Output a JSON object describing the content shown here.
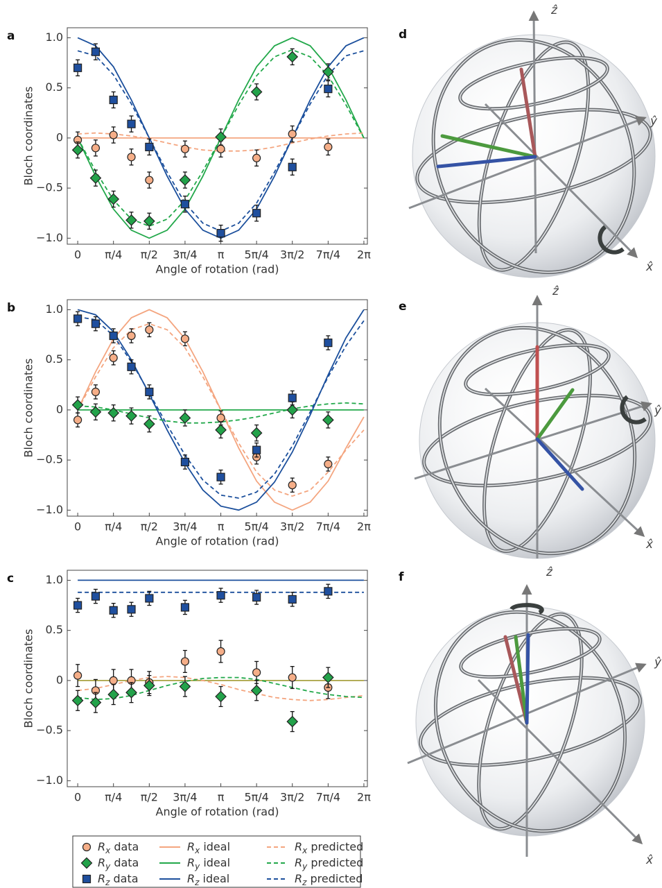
{
  "chart_data": [
    {
      "type": "scatter",
      "panel_label": "a",
      "y_label": "Bloch coordinates",
      "x_label": "Angle of rotation (rad)",
      "xlim": [
        -0.23,
        6.36
      ],
      "ylim": [
        -1.06,
        1.1
      ],
      "xticks": [
        0,
        {
          "value": 0.785,
          "label": "π/4"
        },
        {
          "value": 1.571,
          "label": "π/2"
        },
        {
          "value": 2.356,
          "label": "3π/4"
        },
        {
          "value": 3.142,
          "label": "π"
        },
        {
          "value": 3.927,
          "label": "5π/4"
        },
        {
          "value": 4.712,
          "label": "3π/2"
        },
        {
          "value": 5.498,
          "label": "7π/4"
        },
        {
          "value": 6.283,
          "label": "2π"
        }
      ],
      "yticks": [
        {
          "value": -1,
          "label": "−1.0"
        },
        {
          "value": -0.5,
          "label": "−0.5"
        },
        0,
        0.5,
        {
          "value": 1,
          "label": "1.0"
        }
      ],
      "data_x": [
        0,
        0.393,
        0.785,
        1.178,
        1.571,
        2.356,
        3.142,
        3.927,
        4.712,
        5.498
      ],
      "curve_x": [
        0,
        0.393,
        0.785,
        1.178,
        1.571,
        1.963,
        2.356,
        2.749,
        3.142,
        3.534,
        3.927,
        4.32,
        4.712,
        5.105,
        5.498,
        5.89,
        6.283
      ],
      "series": [
        {
          "name": "Rx data",
          "style": "marker",
          "marker": "circle",
          "color": "#f5ae88",
          "error": 0.08,
          "values": [
            -0.02,
            -0.1,
            0.03,
            -0.19,
            -0.42,
            -0.11,
            -0.11,
            -0.2,
            0.04,
            -0.09
          ]
        },
        {
          "name": "Ry data",
          "style": "marker",
          "marker": "diamond",
          "color": "#23a24a",
          "error": 0.08,
          "values": [
            -0.12,
            -0.4,
            -0.61,
            -0.82,
            -0.83,
            -0.42,
            0.01,
            0.46,
            0.81,
            0.66
          ]
        },
        {
          "name": "Rz data",
          "style": "marker",
          "marker": "square",
          "color": "#1f4f9e",
          "error": 0.08,
          "values": [
            0.7,
            0.86,
            0.38,
            0.14,
            -0.09,
            -0.66,
            -0.95,
            -0.75,
            -0.29,
            0.49
          ]
        },
        {
          "name": "Rx ideal",
          "style": "solid",
          "color": "#f4a57f",
          "values": [
            0,
            0,
            0,
            0,
            0,
            0,
            0,
            0,
            0,
            0,
            0,
            0,
            0,
            0,
            0,
            0,
            0
          ]
        },
        {
          "name": "Ry ideal",
          "style": "solid",
          "color": "#22a84a",
          "values": [
            0,
            -0.38,
            -0.71,
            -0.92,
            -1,
            -0.92,
            -0.71,
            -0.38,
            0,
            0.38,
            0.71,
            0.92,
            1,
            0.92,
            0.71,
            0.38,
            0
          ]
        },
        {
          "name": "Rz ideal",
          "style": "solid",
          "color": "#1b4f9c",
          "values": [
            1,
            0.92,
            0.71,
            0.38,
            0,
            -0.38,
            -0.71,
            -0.92,
            -1,
            -0.92,
            -0.71,
            -0.38,
            0,
            0.38,
            0.71,
            0.92,
            1
          ]
        },
        {
          "name": "Rx predicted",
          "style": "dashed",
          "color": "#f4a57f",
          "values": [
            0.04,
            0.05,
            0.04,
            0.02,
            -0.01,
            -0.05,
            -0.09,
            -0.12,
            -0.13,
            -0.13,
            -0.12,
            -0.09,
            -0.05,
            -0.01,
            0.02,
            0.04,
            0.05
          ]
        },
        {
          "name": "Ry predicted",
          "style": "dashed",
          "color": "#22a84a",
          "values": [
            0,
            -0.33,
            -0.62,
            -0.81,
            -0.88,
            -0.81,
            -0.62,
            -0.33,
            0,
            0.33,
            0.62,
            0.81,
            0.88,
            0.81,
            0.62,
            0.33,
            0
          ]
        },
        {
          "name": "Rz predicted",
          "style": "dashed",
          "color": "#1b4f9c",
          "values": [
            0.87,
            0.82,
            0.63,
            0.34,
            0,
            -0.34,
            -0.65,
            -0.85,
            -0.93,
            -0.85,
            -0.65,
            -0.34,
            0,
            0.34,
            0.63,
            0.82,
            0.87
          ]
        }
      ]
    },
    {
      "type": "scatter",
      "panel_label": "b",
      "y_label": "Bloch coordinates",
      "x_label": "Angle of rotation (rad)",
      "xlim": [
        -0.23,
        6.36
      ],
      "ylim": [
        -1.06,
        1.1
      ],
      "xticks": [
        0,
        {
          "value": 0.785,
          "label": "π/4"
        },
        {
          "value": 1.571,
          "label": "π/2"
        },
        {
          "value": 2.356,
          "label": "3π/4"
        },
        {
          "value": 3.142,
          "label": "π"
        },
        {
          "value": 3.927,
          "label": "5π/4"
        },
        {
          "value": 4.712,
          "label": "3π/2"
        },
        {
          "value": 5.498,
          "label": "7π/4"
        },
        {
          "value": 6.283,
          "label": "2π"
        }
      ],
      "yticks": [
        {
          "value": -1,
          "label": "−1.0"
        },
        {
          "value": -0.5,
          "label": "−0.5"
        },
        0,
        0.5,
        {
          "value": 1,
          "label": "1.0"
        }
      ],
      "data_x": [
        0,
        0.393,
        0.785,
        1.178,
        1.571,
        2.356,
        3.142,
        3.927,
        4.712,
        5.498
      ],
      "curve_x": [
        0,
        0.393,
        0.785,
        1.178,
        1.571,
        1.963,
        2.356,
        2.749,
        3.142,
        3.534,
        3.927,
        4.32,
        4.712,
        5.105,
        5.498,
        5.89,
        6.283
      ],
      "series": [
        {
          "style": "marker",
          "marker": "circle",
          "color": "#f5ae88",
          "error": 0.07,
          "values": [
            -0.1,
            0.18,
            0.52,
            0.74,
            0.8,
            0.71,
            -0.08,
            -0.47,
            -0.75,
            -0.54
          ]
        },
        {
          "style": "marker",
          "marker": "diamond",
          "color": "#23a24a",
          "error": 0.08,
          "values": [
            0.05,
            -0.02,
            -0.03,
            -0.06,
            -0.14,
            -0.08,
            -0.2,
            -0.23,
            0,
            -0.1
          ]
        },
        {
          "style": "marker",
          "marker": "square",
          "color": "#1f4f9e",
          "error": 0.07,
          "values": [
            0.91,
            0.86,
            0.74,
            0.43,
            0.18,
            -0.52,
            -0.67,
            -0.4,
            0.12,
            0.67
          ]
        },
        {
          "style": "solid",
          "color": "#f4a57f",
          "values": [
            0,
            0.38,
            0.71,
            0.92,
            1,
            0.92,
            0.71,
            0.38,
            0,
            -0.38,
            -0.71,
            -0.92,
            -1,
            -0.92,
            -0.71,
            -0.38,
            -0.07
          ]
        },
        {
          "style": "solid",
          "color": "#22a84a",
          "values": [
            0,
            0,
            0,
            0,
            0,
            0,
            0,
            0,
            0,
            0,
            0,
            0,
            0,
            0,
            0,
            0,
            0
          ]
        },
        {
          "style": "solid",
          "color": "#1b4f9c",
          "values": [
            1,
            0.95,
            0.78,
            0.5,
            0.16,
            -0.2,
            -0.53,
            -0.8,
            -0.96,
            -1,
            -0.92,
            -0.72,
            -0.42,
            -0.05,
            0.35,
            0.72,
            1
          ]
        },
        {
          "style": "dashed",
          "color": "#f4a57f",
          "values": [
            0,
            0.33,
            0.62,
            0.8,
            0.86,
            0.8,
            0.62,
            0.33,
            0,
            -0.33,
            -0.62,
            -0.8,
            -0.86,
            -0.8,
            -0.62,
            -0.4,
            -0.2
          ]
        },
        {
          "style": "dashed",
          "color": "#22a84a",
          "values": [
            0.04,
            0.03,
            0,
            -0.04,
            -0.08,
            -0.11,
            -0.13,
            -0.13,
            -0.12,
            -0.1,
            -0.07,
            -0.03,
            0.01,
            0.04,
            0.06,
            0.07,
            0.06
          ]
        },
        {
          "style": "dashed",
          "color": "#1b4f9c",
          "values": [
            0.93,
            0.9,
            0.74,
            0.48,
            0.17,
            -0.15,
            -0.45,
            -0.7,
            -0.85,
            -0.88,
            -0.82,
            -0.64,
            -0.36,
            -0.02,
            0.33,
            0.64,
            0.89
          ]
        }
      ]
    },
    {
      "type": "scatter",
      "panel_label": "c",
      "y_label": "Bloch coordinates",
      "x_label": "Angle of rotation (rad)",
      "xlim": [
        -0.23,
        6.36
      ],
      "ylim": [
        -1.06,
        1.1
      ],
      "xticks": [
        0,
        {
          "value": 0.785,
          "label": "π/4"
        },
        {
          "value": 1.571,
          "label": "π/2"
        },
        {
          "value": 2.356,
          "label": "3π/4"
        },
        {
          "value": 3.142,
          "label": "π"
        },
        {
          "value": 3.927,
          "label": "5π/4"
        },
        {
          "value": 4.712,
          "label": "3π/2"
        },
        {
          "value": 5.498,
          "label": "7π/4"
        },
        {
          "value": 6.283,
          "label": "2π"
        }
      ],
      "yticks": [
        {
          "value": -1,
          "label": "−1.0"
        },
        {
          "value": -0.5,
          "label": "−0.5"
        },
        0,
        0.5,
        {
          "value": 1,
          "label": "1.0"
        }
      ],
      "data_x": [
        0,
        0.393,
        0.785,
        1.178,
        1.571,
        2.356,
        3.142,
        3.927,
        4.712,
        5.498
      ],
      "curve_x": [
        0,
        0.393,
        0.785,
        1.178,
        1.571,
        1.963,
        2.356,
        2.749,
        3.142,
        3.534,
        3.927,
        4.32,
        4.712,
        5.105,
        5.498,
        5.89,
        6.283
      ],
      "series": [
        {
          "style": "marker",
          "marker": "circle",
          "color": "#f5ae88",
          "error": 0.11,
          "values": [
            0.05,
            -0.1,
            0,
            0,
            -0.02,
            0.19,
            0.29,
            0.08,
            0.03,
            -0.07
          ]
        },
        {
          "style": "marker",
          "marker": "diamond",
          "color": "#23a24a",
          "error": 0.1,
          "values": [
            -0.2,
            -0.22,
            -0.14,
            -0.12,
            -0.05,
            -0.06,
            -0.16,
            -0.1,
            -0.41,
            0.03
          ]
        },
        {
          "style": "marker",
          "marker": "square",
          "color": "#1f4f9e",
          "error": 0.07,
          "values": [
            0.75,
            0.84,
            0.7,
            0.71,
            0.82,
            0.73,
            0.85,
            0.83,
            0.81,
            0.89
          ]
        },
        {
          "style": "solid",
          "color": "#f4a57f",
          "values": [
            0,
            0,
            0,
            0,
            0,
            0,
            0,
            0,
            0,
            0,
            0,
            0,
            0,
            0,
            0,
            0,
            0
          ]
        },
        {
          "style": "solid",
          "color": "#a9a84a",
          "values": [
            0,
            0,
            0,
            0,
            0,
            0,
            0,
            0,
            0,
            0,
            0,
            0,
            0,
            0,
            0,
            0,
            0
          ]
        },
        {
          "style": "solid",
          "color": "#1b4f9c",
          "values": [
            1,
            1,
            1,
            1,
            1,
            1,
            1,
            1,
            1,
            1,
            1,
            1,
            1,
            1,
            1,
            1,
            1
          ]
        },
        {
          "style": "dashed",
          "color": "#f4a57f",
          "values": [
            -0.1,
            -0.08,
            -0.04,
            0,
            0.03,
            0.04,
            0.03,
            0,
            -0.04,
            -0.09,
            -0.13,
            -0.17,
            -0.19,
            -0.2,
            -0.19,
            -0.17,
            -0.15
          ]
        },
        {
          "style": "dashed",
          "color": "#22a84a",
          "values": [
            -0.17,
            -0.19,
            -0.18,
            -0.15,
            -0.1,
            -0.05,
            -0.01,
            0.02,
            0.03,
            0.03,
            0.01,
            -0.03,
            -0.07,
            -0.11,
            -0.14,
            -0.16,
            -0.17
          ]
        },
        {
          "style": "dashed",
          "color": "#1b4f9c",
          "values": [
            0.88,
            0.88,
            0.88,
            0.88,
            0.88,
            0.88,
            0.88,
            0.88,
            0.88,
            0.88,
            0.88,
            0.88,
            0.88,
            0.88,
            0.88,
            0.88,
            0.88
          ]
        }
      ]
    }
  ],
  "illustrations": [
    {
      "panel_label": "d",
      "axis_labels": {
        "z": "ẑ",
        "y": "ŷ",
        "x": "x̂"
      }
    },
    {
      "panel_label": "e",
      "axis_labels": {
        "z": "ẑ",
        "y": "ŷ",
        "x": "x̂"
      }
    },
    {
      "panel_label": "f",
      "axis_labels": {
        "z": "ẑ",
        "y": "ŷ",
        "x": "x̂"
      }
    }
  ]
}
